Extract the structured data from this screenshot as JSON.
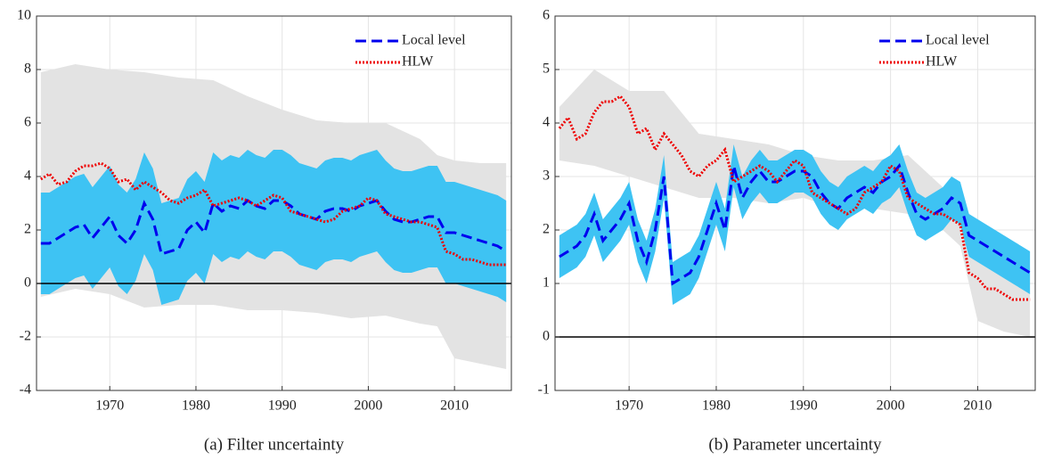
{
  "chart_data": [
    {
      "type": "line",
      "caption": "(a)  Filter uncertainty",
      "x": [
        1962,
        1963,
        1964,
        1965,
        1966,
        1967,
        1968,
        1969,
        1970,
        1971,
        1972,
        1973,
        1974,
        1975,
        1976,
        1977,
        1978,
        1979,
        1980,
        1981,
        1982,
        1983,
        1984,
        1985,
        1986,
        1987,
        1988,
        1989,
        1990,
        1991,
        1992,
        1993,
        1994,
        1995,
        1996,
        1997,
        1998,
        1999,
        2000,
        2001,
        2002,
        2003,
        2004,
        2005,
        2006,
        2007,
        2008,
        2009,
        2010,
        2011,
        2012,
        2013,
        2014,
        2015,
        2016
      ],
      "xlim": [
        1961.5,
        2016.6
      ],
      "xticks": [
        1970,
        1980,
        1990,
        2000,
        2010
      ],
      "ylim": [
        -4,
        10
      ],
      "yticks": [
        -4,
        -2,
        0,
        2,
        4,
        6,
        8,
        10
      ],
      "grid": true,
      "hline": 0,
      "legend": "upper right",
      "bands": [
        {
          "color": "#e3e3e3",
          "x": [
            1962,
            1966,
            1970,
            1974,
            1978,
            1982,
            1986,
            1990,
            1994,
            1998,
            2002,
            2006,
            2008,
            2010,
            2013,
            2016
          ],
          "upper": [
            7.9,
            8.2,
            8.0,
            7.9,
            7.7,
            7.6,
            7.0,
            6.5,
            6.1,
            6.0,
            6.0,
            5.4,
            4.8,
            4.6,
            4.5,
            4.5
          ],
          "lower": [
            -0.5,
            -0.2,
            -0.4,
            -0.9,
            -0.8,
            -0.8,
            -1.0,
            -1.0,
            -1.1,
            -1.3,
            -1.2,
            -1.5,
            -1.6,
            -2.8,
            -3.0,
            -3.2
          ]
        },
        {
          "color": "#3ec3f3",
          "upper": [
            3.4,
            3.4,
            3.6,
            3.8,
            4.0,
            4.1,
            3.6,
            4.0,
            4.4,
            3.7,
            3.4,
            3.9,
            4.9,
            4.3,
            3.0,
            3.1,
            3.2,
            3.9,
            4.2,
            3.8,
            4.9,
            4.6,
            4.8,
            4.7,
            5.0,
            4.8,
            4.7,
            5.0,
            5.0,
            4.8,
            4.5,
            4.4,
            4.3,
            4.6,
            4.7,
            4.7,
            4.6,
            4.8,
            4.9,
            5.0,
            4.6,
            4.3,
            4.2,
            4.2,
            4.3,
            4.4,
            4.4,
            3.8,
            3.8,
            3.7,
            3.6,
            3.5,
            3.4,
            3.3,
            3.1
          ],
          "lower": [
            -0.4,
            -0.4,
            -0.2,
            0.0,
            0.2,
            0.3,
            -0.2,
            0.2,
            0.6,
            -0.1,
            -0.4,
            0.1,
            1.1,
            0.5,
            -0.8,
            -0.7,
            -0.6,
            0.1,
            0.4,
            0.0,
            1.1,
            0.8,
            1.0,
            0.9,
            1.2,
            1.0,
            0.9,
            1.2,
            1.2,
            1.0,
            0.7,
            0.6,
            0.5,
            0.8,
            0.9,
            0.9,
            0.8,
            1.0,
            1.1,
            1.2,
            0.8,
            0.5,
            0.4,
            0.4,
            0.5,
            0.6,
            0.6,
            0.0,
            0.0,
            -0.1,
            -0.2,
            -0.3,
            -0.4,
            -0.5,
            -0.7
          ]
        }
      ],
      "series": [
        {
          "name": "Local level",
          "color": "#0000ee",
          "style": "dashed",
          "values": [
            1.5,
            1.5,
            1.7,
            1.9,
            2.1,
            2.2,
            1.7,
            2.1,
            2.5,
            1.8,
            1.5,
            2.0,
            3.0,
            2.4,
            1.1,
            1.2,
            1.3,
            2.0,
            2.3,
            1.9,
            3.0,
            2.7,
            2.9,
            2.8,
            3.1,
            2.9,
            2.8,
            3.1,
            3.1,
            2.9,
            2.6,
            2.5,
            2.4,
            2.7,
            2.8,
            2.8,
            2.7,
            2.9,
            3.0,
            3.1,
            2.7,
            2.4,
            2.3,
            2.3,
            2.4,
            2.5,
            2.5,
            1.9,
            1.9,
            1.8,
            1.7,
            1.6,
            1.5,
            1.4,
            1.2
          ]
        },
        {
          "name": "HLW",
          "color": "#ee0000",
          "style": "dotted",
          "values": [
            3.9,
            4.1,
            3.7,
            3.8,
            4.2,
            4.4,
            4.4,
            4.5,
            4.3,
            3.8,
            3.9,
            3.5,
            3.8,
            3.6,
            3.4,
            3.1,
            3.0,
            3.2,
            3.3,
            3.5,
            2.9,
            3.0,
            3.1,
            3.2,
            3.1,
            2.9,
            3.1,
            3.3,
            3.2,
            2.7,
            2.6,
            2.5,
            2.4,
            2.3,
            2.4,
            2.7,
            2.8,
            2.9,
            3.2,
            3.1,
            2.6,
            2.5,
            2.4,
            2.3,
            2.3,
            2.2,
            2.1,
            1.2,
            1.1,
            0.9,
            0.9,
            0.8,
            0.7,
            0.7,
            0.7
          ]
        }
      ]
    },
    {
      "type": "line",
      "caption": "(b)  Parameter uncertainty",
      "x": [
        1962,
        1963,
        1964,
        1965,
        1966,
        1967,
        1968,
        1969,
        1970,
        1971,
        1972,
        1973,
        1974,
        1975,
        1976,
        1977,
        1978,
        1979,
        1980,
        1981,
        1982,
        1983,
        1984,
        1985,
        1986,
        1987,
        1988,
        1989,
        1990,
        1991,
        1992,
        1993,
        1994,
        1995,
        1996,
        1997,
        1998,
        1999,
        2000,
        2001,
        2002,
        2003,
        2004,
        2005,
        2006,
        2007,
        2008,
        2009,
        2010,
        2011,
        2012,
        2013,
        2014,
        2015,
        2016
      ],
      "xlim": [
        1961.5,
        2016.6
      ],
      "xticks": [
        1970,
        1980,
        1990,
        2000,
        2010
      ],
      "ylim": [
        -1,
        6
      ],
      "yticks": [
        -1,
        0,
        1,
        2,
        3,
        4,
        5,
        6
      ],
      "grid": true,
      "hline": 0,
      "legend": "upper right",
      "bands": [
        {
          "color": "#e3e3e3",
          "x": [
            1962,
            1966,
            1970,
            1974,
            1978,
            1982,
            1986,
            1990,
            1994,
            1998,
            2002,
            2006,
            2008,
            2010,
            2013,
            2016
          ],
          "upper": [
            4.3,
            5.0,
            4.6,
            4.6,
            3.8,
            3.7,
            3.6,
            3.4,
            3.3,
            3.3,
            3.4,
            2.8,
            2.8,
            1.8,
            1.4,
            1.3
          ],
          "lower": [
            3.3,
            3.2,
            3.0,
            2.8,
            2.6,
            2.6,
            2.5,
            2.6,
            2.4,
            2.4,
            2.3,
            2.0,
            1.7,
            0.3,
            0.1,
            0.0
          ]
        },
        {
          "color": "#3ec3f3",
          "upper": [
            1.9,
            2.0,
            2.1,
            2.3,
            2.7,
            2.2,
            2.4,
            2.6,
            2.9,
            2.2,
            1.8,
            2.4,
            3.4,
            1.4,
            1.5,
            1.6,
            1.9,
            2.4,
            2.9,
            2.4,
            3.6,
            3.0,
            3.3,
            3.5,
            3.3,
            3.3,
            3.4,
            3.5,
            3.5,
            3.4,
            3.1,
            2.9,
            2.8,
            3.0,
            3.1,
            3.2,
            3.1,
            3.3,
            3.4,
            3.6,
            3.1,
            2.7,
            2.6,
            2.7,
            2.8,
            3.0,
            2.9,
            2.3,
            2.2,
            2.1,
            2.0,
            1.9,
            1.8,
            1.7,
            1.6
          ],
          "lower": [
            1.1,
            1.2,
            1.3,
            1.5,
            1.9,
            1.4,
            1.6,
            1.8,
            2.1,
            1.4,
            1.0,
            1.6,
            2.6,
            0.6,
            0.7,
            0.8,
            1.1,
            1.6,
            2.1,
            1.6,
            2.8,
            2.2,
            2.5,
            2.7,
            2.5,
            2.5,
            2.6,
            2.7,
            2.7,
            2.6,
            2.3,
            2.1,
            2.0,
            2.2,
            2.3,
            2.4,
            2.3,
            2.5,
            2.6,
            2.8,
            2.3,
            1.9,
            1.8,
            1.9,
            2.0,
            2.2,
            2.1,
            1.5,
            1.4,
            1.3,
            1.2,
            1.1,
            1.0,
            0.9,
            0.8
          ]
        }
      ],
      "series": [
        {
          "name": "Local level",
          "color": "#0000ee",
          "style": "dashed",
          "values": [
            1.5,
            1.6,
            1.7,
            1.9,
            2.3,
            1.8,
            2.0,
            2.2,
            2.5,
            1.8,
            1.4,
            2.0,
            3.0,
            1.0,
            1.1,
            1.2,
            1.5,
            2.0,
            2.5,
            2.0,
            3.2,
            2.6,
            2.9,
            3.1,
            2.9,
            2.9,
            3.0,
            3.1,
            3.1,
            3.0,
            2.7,
            2.5,
            2.4,
            2.6,
            2.7,
            2.8,
            2.7,
            2.9,
            3.0,
            3.2,
            2.7,
            2.3,
            2.2,
            2.3,
            2.4,
            2.6,
            2.5,
            1.9,
            1.8,
            1.7,
            1.6,
            1.5,
            1.4,
            1.3,
            1.2
          ]
        },
        {
          "name": "HLW",
          "color": "#ee0000",
          "style": "dotted",
          "values": [
            3.9,
            4.1,
            3.7,
            3.8,
            4.2,
            4.4,
            4.4,
            4.5,
            4.3,
            3.8,
            3.9,
            3.5,
            3.8,
            3.6,
            3.4,
            3.1,
            3.0,
            3.2,
            3.3,
            3.5,
            2.9,
            3.0,
            3.1,
            3.2,
            3.1,
            2.9,
            3.1,
            3.3,
            3.2,
            2.7,
            2.6,
            2.5,
            2.4,
            2.3,
            2.4,
            2.7,
            2.8,
            2.9,
            3.2,
            3.1,
            2.6,
            2.5,
            2.4,
            2.3,
            2.3,
            2.2,
            2.1,
            1.2,
            1.1,
            0.9,
            0.9,
            0.8,
            0.7,
            0.7,
            0.7
          ]
        }
      ]
    }
  ]
}
